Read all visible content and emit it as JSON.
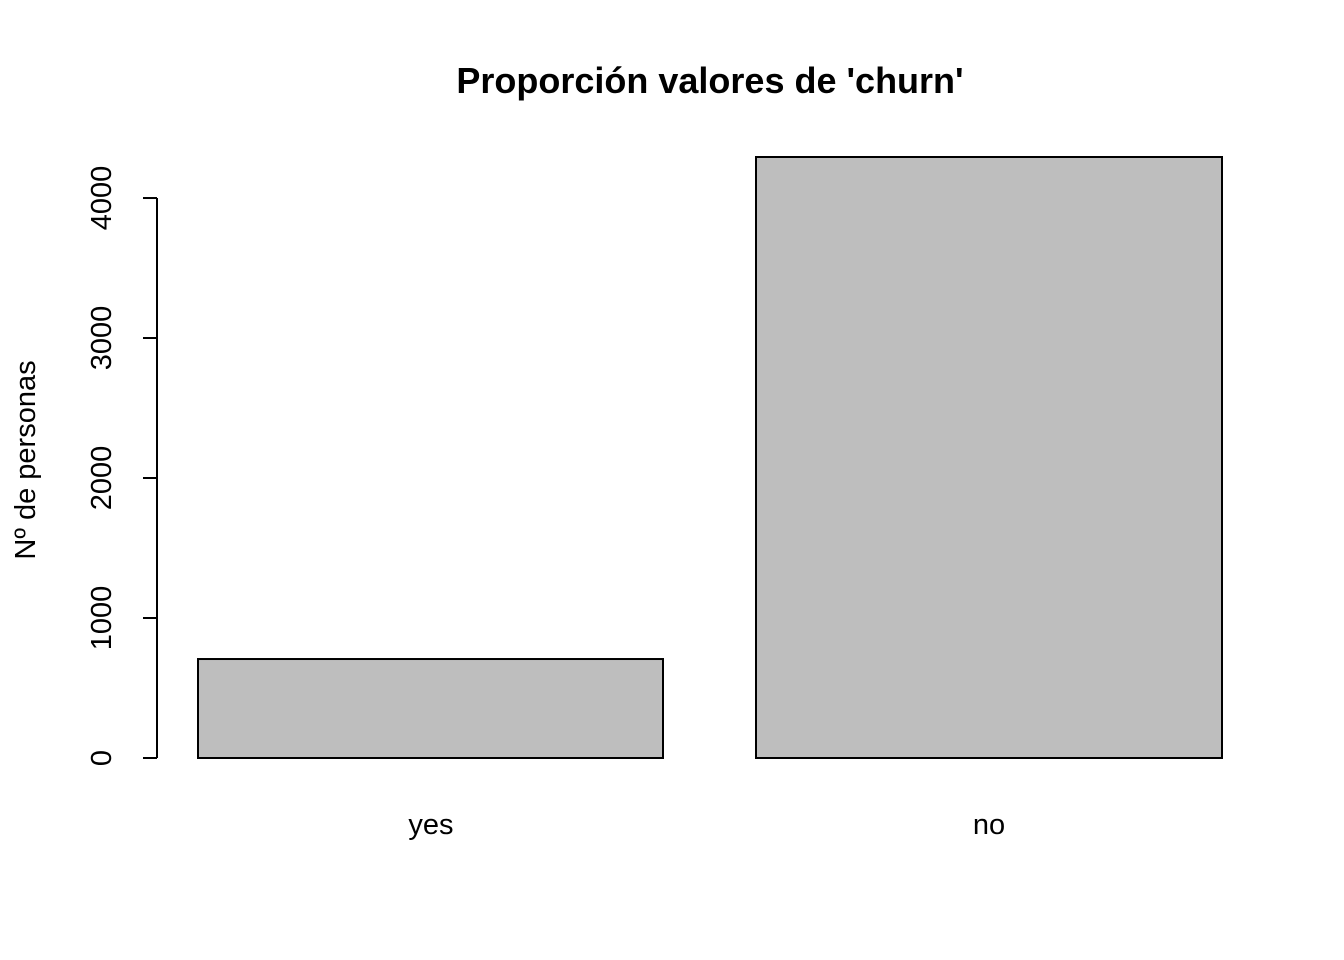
{
  "chart_data": {
    "type": "bar",
    "title": "Proporción valores de 'churn'",
    "xlabel": "",
    "ylabel": "Nº de personas",
    "categories": [
      "yes",
      "no"
    ],
    "values": [
      707,
      4293
    ],
    "ylim": [
      0,
      4293
    ],
    "yticks": [
      0,
      1000,
      2000,
      3000,
      4000
    ],
    "grid": false,
    "legend": "none",
    "colors": {
      "bar_fill": "#bebebe",
      "bar_stroke": "#000000",
      "axis": "#000000",
      "background": "#ffffff"
    }
  }
}
